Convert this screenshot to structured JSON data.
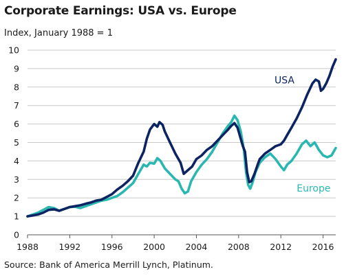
{
  "chart_data": {
    "type": "line",
    "title": "Corporate Earnings: USA vs. Europe",
    "ylabel": "Index, January 1988 = 1",
    "xlabel": "",
    "source": "Source: Bank of America Merrill Lynch, Platinum.",
    "xlim": [
      1988,
      2017.2
    ],
    "ylim": [
      0,
      10
    ],
    "x_ticks": [
      "1988",
      "1992",
      "1996",
      "2000",
      "2004",
      "2008",
      "2012",
      "2016"
    ],
    "y_ticks": [
      "0",
      "1",
      "2",
      "3",
      "4",
      "5",
      "6",
      "7",
      "8",
      "9",
      "10"
    ],
    "grid": "horizontal",
    "legend": "inline labels",
    "colors": {
      "USA": "#0c2461",
      "Europe": "#2ab7b0",
      "grid": "#c8c8c8",
      "axis": "#555555"
    },
    "series": [
      {
        "name": "USA",
        "points": [
          [
            1988.0,
            1.0
          ],
          [
            1988.5,
            1.05
          ],
          [
            1989.0,
            1.1
          ],
          [
            1989.5,
            1.2
          ],
          [
            1990.0,
            1.35
          ],
          [
            1990.5,
            1.38
          ],
          [
            1991.0,
            1.3
          ],
          [
            1991.5,
            1.4
          ],
          [
            1992.0,
            1.5
          ],
          [
            1992.5,
            1.55
          ],
          [
            1993.0,
            1.6
          ],
          [
            1993.5,
            1.68
          ],
          [
            1994.0,
            1.75
          ],
          [
            1994.5,
            1.85
          ],
          [
            1995.0,
            1.9
          ],
          [
            1995.5,
            2.05
          ],
          [
            1996.0,
            2.2
          ],
          [
            1996.5,
            2.45
          ],
          [
            1997.0,
            2.65
          ],
          [
            1997.5,
            2.9
          ],
          [
            1998.0,
            3.2
          ],
          [
            1998.5,
            3.9
          ],
          [
            1999.0,
            4.5
          ],
          [
            1999.3,
            5.2
          ],
          [
            1999.6,
            5.7
          ],
          [
            2000.0,
            6.0
          ],
          [
            2000.3,
            5.85
          ],
          [
            2000.5,
            6.1
          ],
          [
            2000.8,
            5.95
          ],
          [
            2001.0,
            5.6
          ],
          [
            2001.5,
            5.0
          ],
          [
            2002.0,
            4.4
          ],
          [
            2002.5,
            3.9
          ],
          [
            2002.8,
            3.3
          ],
          [
            2003.0,
            3.4
          ],
          [
            2003.3,
            3.55
          ],
          [
            2003.6,
            3.7
          ],
          [
            2004.0,
            4.1
          ],
          [
            2004.5,
            4.3
          ],
          [
            2005.0,
            4.6
          ],
          [
            2005.5,
            4.8
          ],
          [
            2006.0,
            5.1
          ],
          [
            2006.5,
            5.4
          ],
          [
            2007.0,
            5.7
          ],
          [
            2007.3,
            5.9
          ],
          [
            2007.6,
            6.05
          ],
          [
            2007.9,
            5.8
          ],
          [
            2008.2,
            5.2
          ],
          [
            2008.4,
            4.8
          ],
          [
            2008.6,
            4.5
          ],
          [
            2008.8,
            3.4
          ],
          [
            2009.0,
            2.85
          ],
          [
            2009.2,
            2.9
          ],
          [
            2009.5,
            3.3
          ],
          [
            2009.8,
            3.8
          ],
          [
            2010.0,
            4.1
          ],
          [
            2010.5,
            4.4
          ],
          [
            2011.0,
            4.6
          ],
          [
            2011.5,
            4.8
          ],
          [
            2012.0,
            4.9
          ],
          [
            2012.3,
            5.1
          ],
          [
            2012.6,
            5.4
          ],
          [
            2013.0,
            5.8
          ],
          [
            2013.5,
            6.3
          ],
          [
            2014.0,
            6.9
          ],
          [
            2014.5,
            7.6
          ],
          [
            2015.0,
            8.2
          ],
          [
            2015.3,
            8.4
          ],
          [
            2015.6,
            8.3
          ],
          [
            2015.8,
            7.8
          ],
          [
            2016.0,
            7.9
          ],
          [
            2016.3,
            8.2
          ],
          [
            2016.6,
            8.6
          ],
          [
            2016.9,
            9.1
          ],
          [
            2017.2,
            9.5
          ]
        ]
      },
      {
        "name": "Europe",
        "points": [
          [
            1988.0,
            1.0
          ],
          [
            1988.5,
            1.1
          ],
          [
            1989.0,
            1.2
          ],
          [
            1989.5,
            1.35
          ],
          [
            1990.0,
            1.5
          ],
          [
            1990.5,
            1.45
          ],
          [
            1991.0,
            1.3
          ],
          [
            1991.5,
            1.4
          ],
          [
            1992.0,
            1.5
          ],
          [
            1992.5,
            1.52
          ],
          [
            1993.0,
            1.45
          ],
          [
            1993.5,
            1.55
          ],
          [
            1994.0,
            1.65
          ],
          [
            1994.5,
            1.75
          ],
          [
            1995.0,
            1.85
          ],
          [
            1995.5,
            1.9
          ],
          [
            1996.0,
            2.0
          ],
          [
            1996.5,
            2.1
          ],
          [
            1997.0,
            2.3
          ],
          [
            1997.5,
            2.55
          ],
          [
            1998.0,
            2.8
          ],
          [
            1998.5,
            3.3
          ],
          [
            1999.0,
            3.8
          ],
          [
            1999.3,
            3.7
          ],
          [
            1999.6,
            3.9
          ],
          [
            2000.0,
            3.85
          ],
          [
            2000.3,
            4.15
          ],
          [
            2000.6,
            4.0
          ],
          [
            2001.0,
            3.6
          ],
          [
            2001.5,
            3.3
          ],
          [
            2002.0,
            3.0
          ],
          [
            2002.3,
            2.9
          ],
          [
            2002.6,
            2.5
          ],
          [
            2002.9,
            2.25
          ],
          [
            2003.2,
            2.35
          ],
          [
            2003.5,
            2.9
          ],
          [
            2004.0,
            3.4
          ],
          [
            2004.5,
            3.8
          ],
          [
            2005.0,
            4.1
          ],
          [
            2005.5,
            4.5
          ],
          [
            2006.0,
            5.0
          ],
          [
            2006.5,
            5.5
          ],
          [
            2007.0,
            5.9
          ],
          [
            2007.3,
            6.1
          ],
          [
            2007.6,
            6.45
          ],
          [
            2007.9,
            6.2
          ],
          [
            2008.2,
            5.6
          ],
          [
            2008.5,
            4.6
          ],
          [
            2008.7,
            3.4
          ],
          [
            2008.9,
            2.7
          ],
          [
            2009.1,
            2.5
          ],
          [
            2009.3,
            2.8
          ],
          [
            2009.6,
            3.4
          ],
          [
            2010.0,
            3.9
          ],
          [
            2010.5,
            4.2
          ],
          [
            2011.0,
            4.4
          ],
          [
            2011.5,
            4.1
          ],
          [
            2012.0,
            3.7
          ],
          [
            2012.3,
            3.5
          ],
          [
            2012.6,
            3.8
          ],
          [
            2013.0,
            4.0
          ],
          [
            2013.5,
            4.4
          ],
          [
            2014.0,
            4.9
          ],
          [
            2014.4,
            5.1
          ],
          [
            2014.8,
            4.8
          ],
          [
            2015.2,
            5.0
          ],
          [
            2015.6,
            4.6
          ],
          [
            2016.0,
            4.3
          ],
          [
            2016.4,
            4.2
          ],
          [
            2016.8,
            4.3
          ],
          [
            2017.2,
            4.7
          ]
        ]
      }
    ]
  }
}
